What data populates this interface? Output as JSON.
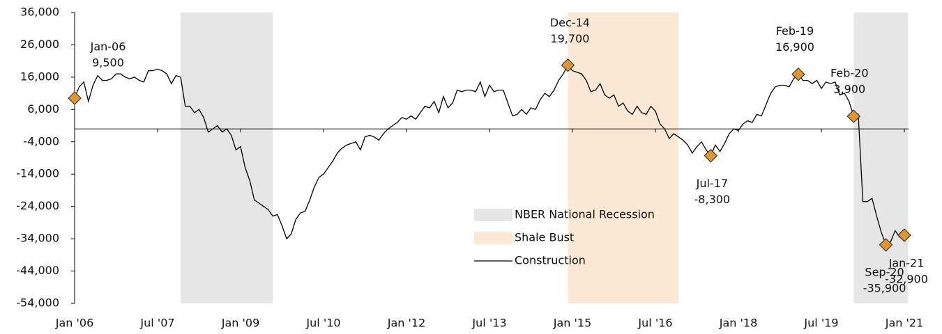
{
  "chart_data": {
    "type": "line",
    "x": [
      "2006-01",
      "2006-02",
      "2006-03",
      "2006-04",
      "2006-05",
      "2006-06",
      "2006-07",
      "2006-08",
      "2006-09",
      "2006-10",
      "2006-11",
      "2006-12",
      "2007-01",
      "2007-02",
      "2007-03",
      "2007-04",
      "2007-05",
      "2007-06",
      "2007-07",
      "2007-08",
      "2007-09",
      "2007-10",
      "2007-11",
      "2007-12",
      "2008-01",
      "2008-02",
      "2008-03",
      "2008-04",
      "2008-05",
      "2008-06",
      "2008-07",
      "2008-08",
      "2008-09",
      "2008-10",
      "2008-11",
      "2008-12",
      "2009-01",
      "2009-02",
      "2009-03",
      "2009-04",
      "2009-05",
      "2009-06",
      "2009-07",
      "2009-08",
      "2009-09",
      "2009-10",
      "2009-11",
      "2009-12",
      "2010-01",
      "2010-02",
      "2010-03",
      "2010-04",
      "2010-05",
      "2010-06",
      "2010-07",
      "2010-08",
      "2010-09",
      "2010-10",
      "2010-11",
      "2010-12",
      "2011-01",
      "2011-02",
      "2011-03",
      "2011-04",
      "2011-05",
      "2011-06",
      "2011-07",
      "2011-08",
      "2011-09",
      "2011-10",
      "2011-11",
      "2011-12",
      "2012-01",
      "2012-02",
      "2012-03",
      "2012-04",
      "2012-05",
      "2012-06",
      "2012-07",
      "2012-08",
      "2012-09",
      "2012-10",
      "2012-11",
      "2012-12",
      "2013-01",
      "2013-02",
      "2013-03",
      "2013-04",
      "2013-05",
      "2013-06",
      "2013-07",
      "2013-08",
      "2013-09",
      "2013-10",
      "2013-11",
      "2013-12",
      "2014-01",
      "2014-02",
      "2014-03",
      "2014-04",
      "2014-05",
      "2014-06",
      "2014-07",
      "2014-08",
      "2014-09",
      "2014-10",
      "2014-11",
      "2014-12",
      "2015-01",
      "2015-02",
      "2015-03",
      "2015-04",
      "2015-05",
      "2015-06",
      "2015-07",
      "2015-08",
      "2015-09",
      "2015-10",
      "2015-11",
      "2015-12",
      "2016-01",
      "2016-02",
      "2016-03",
      "2016-04",
      "2016-05",
      "2016-06",
      "2016-07",
      "2016-08",
      "2016-09",
      "2016-10",
      "2016-11",
      "2016-12",
      "2017-01",
      "2017-02",
      "2017-03",
      "2017-04",
      "2017-05",
      "2017-06",
      "2017-07",
      "2017-08",
      "2017-09",
      "2017-10",
      "2017-11",
      "2017-12",
      "2018-01",
      "2018-02",
      "2018-03",
      "2018-04",
      "2018-05",
      "2018-06",
      "2018-07",
      "2018-08",
      "2018-09",
      "2018-10",
      "2018-11",
      "2018-12",
      "2019-01",
      "2019-02",
      "2019-03",
      "2019-04",
      "2019-05",
      "2019-06",
      "2019-07",
      "2019-08",
      "2019-09",
      "2019-10",
      "2019-11",
      "2019-12",
      "2020-01",
      "2020-02",
      "2020-03",
      "2020-04",
      "2020-05",
      "2020-06",
      "2020-07",
      "2020-08",
      "2020-09",
      "2020-10",
      "2020-11",
      "2020-12",
      "2021-01"
    ],
    "series": [
      {
        "name": "Construction",
        "color": "#000000",
        "values": [
          9500,
          13000,
          14500,
          8500,
          13500,
          16500,
          15000,
          15000,
          15500,
          17000,
          17000,
          16000,
          15500,
          16000,
          15000,
          14500,
          18000,
          18000,
          18500,
          18000,
          17000,
          14000,
          16500,
          16000,
          7000,
          7000,
          5000,
          6000,
          3500,
          -1000,
          0,
          1000,
          -1000,
          0,
          -2000,
          -6500,
          -5500,
          -12000,
          -16000,
          -22000,
          -23000,
          -24000,
          -25000,
          -27000,
          -26500,
          -30000,
          -34000,
          -32500,
          -28000,
          -26000,
          -25500,
          -22000,
          -18000,
          -15000,
          -14000,
          -12000,
          -10000,
          -7500,
          -6000,
          -5000,
          -4500,
          -4000,
          -6500,
          -2500,
          -2000,
          -2500,
          -3500,
          -1500,
          0,
          1000,
          2000,
          3500,
          3000,
          4000,
          3000,
          5000,
          7000,
          6500,
          8500,
          5000,
          10000,
          6500,
          8000,
          12000,
          11500,
          12000,
          12000,
          11500,
          14500,
          10000,
          13500,
          11500,
          12000,
          12000,
          8000,
          4000,
          4500,
          6000,
          4500,
          6500,
          6000,
          9000,
          11000,
          10000,
          12000,
          15000,
          17000,
          19700,
          18000,
          17500,
          17000,
          15000,
          11500,
          12000,
          14000,
          10500,
          9500,
          10500,
          7000,
          8000,
          5500,
          4500,
          7000,
          5000,
          4500,
          7000,
          5500,
          1500,
          0,
          -3000,
          -1500,
          -2500,
          -3500,
          -5000,
          -7500,
          -5500,
          -4000,
          -6500,
          -8300,
          -5000,
          -7000,
          -4500,
          -1500,
          0,
          -500,
          1500,
          2500,
          2000,
          4500,
          4000,
          7500,
          11000,
          13000,
          13500,
          13500,
          13000,
          15500,
          16900,
          15000,
          15000,
          14000,
          15000,
          12500,
          14500,
          14000,
          14500,
          10500,
          11000,
          8500,
          3900,
          4500,
          -22500,
          -22500,
          -21500,
          -27000,
          -32000,
          -35900,
          -35000,
          -31500,
          -33500,
          -32900
        ]
      }
    ],
    "shaded_regions": [
      {
        "name": "NBER National Recession",
        "color": "#e6e6e6",
        "ranges": [
          [
            "2007-12",
            "2009-07"
          ],
          [
            "2020-02",
            "2021-01"
          ]
        ]
      },
      {
        "name": "Shale Bust",
        "color": "#fbe9d5",
        "ranges": [
          [
            "2014-12",
            "2016-11"
          ]
        ]
      }
    ],
    "annotations": [
      {
        "x": "2006-01",
        "label": "Jan-06",
        "value": 9500,
        "value_label": "9,500"
      },
      {
        "x": "2014-12",
        "label": "Dec-14",
        "value": 19700,
        "value_label": "19,700"
      },
      {
        "x": "2017-07",
        "label": "Jul-17",
        "value": -8300,
        "value_label": "-8,300"
      },
      {
        "x": "2019-02",
        "label": "Feb-19",
        "value": 16900,
        "value_label": "16,900"
      },
      {
        "x": "2020-02",
        "label": "Feb-20",
        "value": 3900,
        "value_label": "3,900"
      },
      {
        "x": "2020-09",
        "label": "Sep-20",
        "value": -35900,
        "value_label": "-35,900"
      },
      {
        "x": "2021-01",
        "label": "Jan-21",
        "value": -32900,
        "value_label": "-32,900"
      }
    ],
    "marker_color": "#e0962a",
    "xlim": [
      "2006-01",
      "2021-01"
    ],
    "xticks": [
      {
        "value": "2006-01",
        "label": "Jan '06"
      },
      {
        "value": "2007-07",
        "label": "Jul '07"
      },
      {
        "value": "2009-01",
        "label": "Jan '09"
      },
      {
        "value": "2010-07",
        "label": "Jul '10"
      },
      {
        "value": "2012-01",
        "label": "Jan '12"
      },
      {
        "value": "2013-07",
        "label": "Jul '13"
      },
      {
        "value": "2015-01",
        "label": "Jan '15"
      },
      {
        "value": "2016-07",
        "label": "Jul '16"
      },
      {
        "value": "2018-01",
        "label": "Jan '18"
      },
      {
        "value": "2019-07",
        "label": "Jul '19"
      },
      {
        "value": "2021-01",
        "label": "Jan '21"
      }
    ],
    "ylim": [
      -54000,
      36000
    ],
    "yticks": [
      {
        "value": 36000,
        "label": "36,000"
      },
      {
        "value": 26000,
        "label": "26,000"
      },
      {
        "value": 16000,
        "label": "16,000"
      },
      {
        "value": 6000,
        "label": "6,000"
      },
      {
        "value": -4000,
        "label": "-4,000"
      },
      {
        "value": -14000,
        "label": "-14,000"
      },
      {
        "value": -24000,
        "label": "-24,000"
      },
      {
        "value": -34000,
        "label": "-34,000"
      },
      {
        "value": -44000,
        "label": "-44,000"
      },
      {
        "value": -54000,
        "label": "-54,000"
      }
    ],
    "grid": false
  }
}
